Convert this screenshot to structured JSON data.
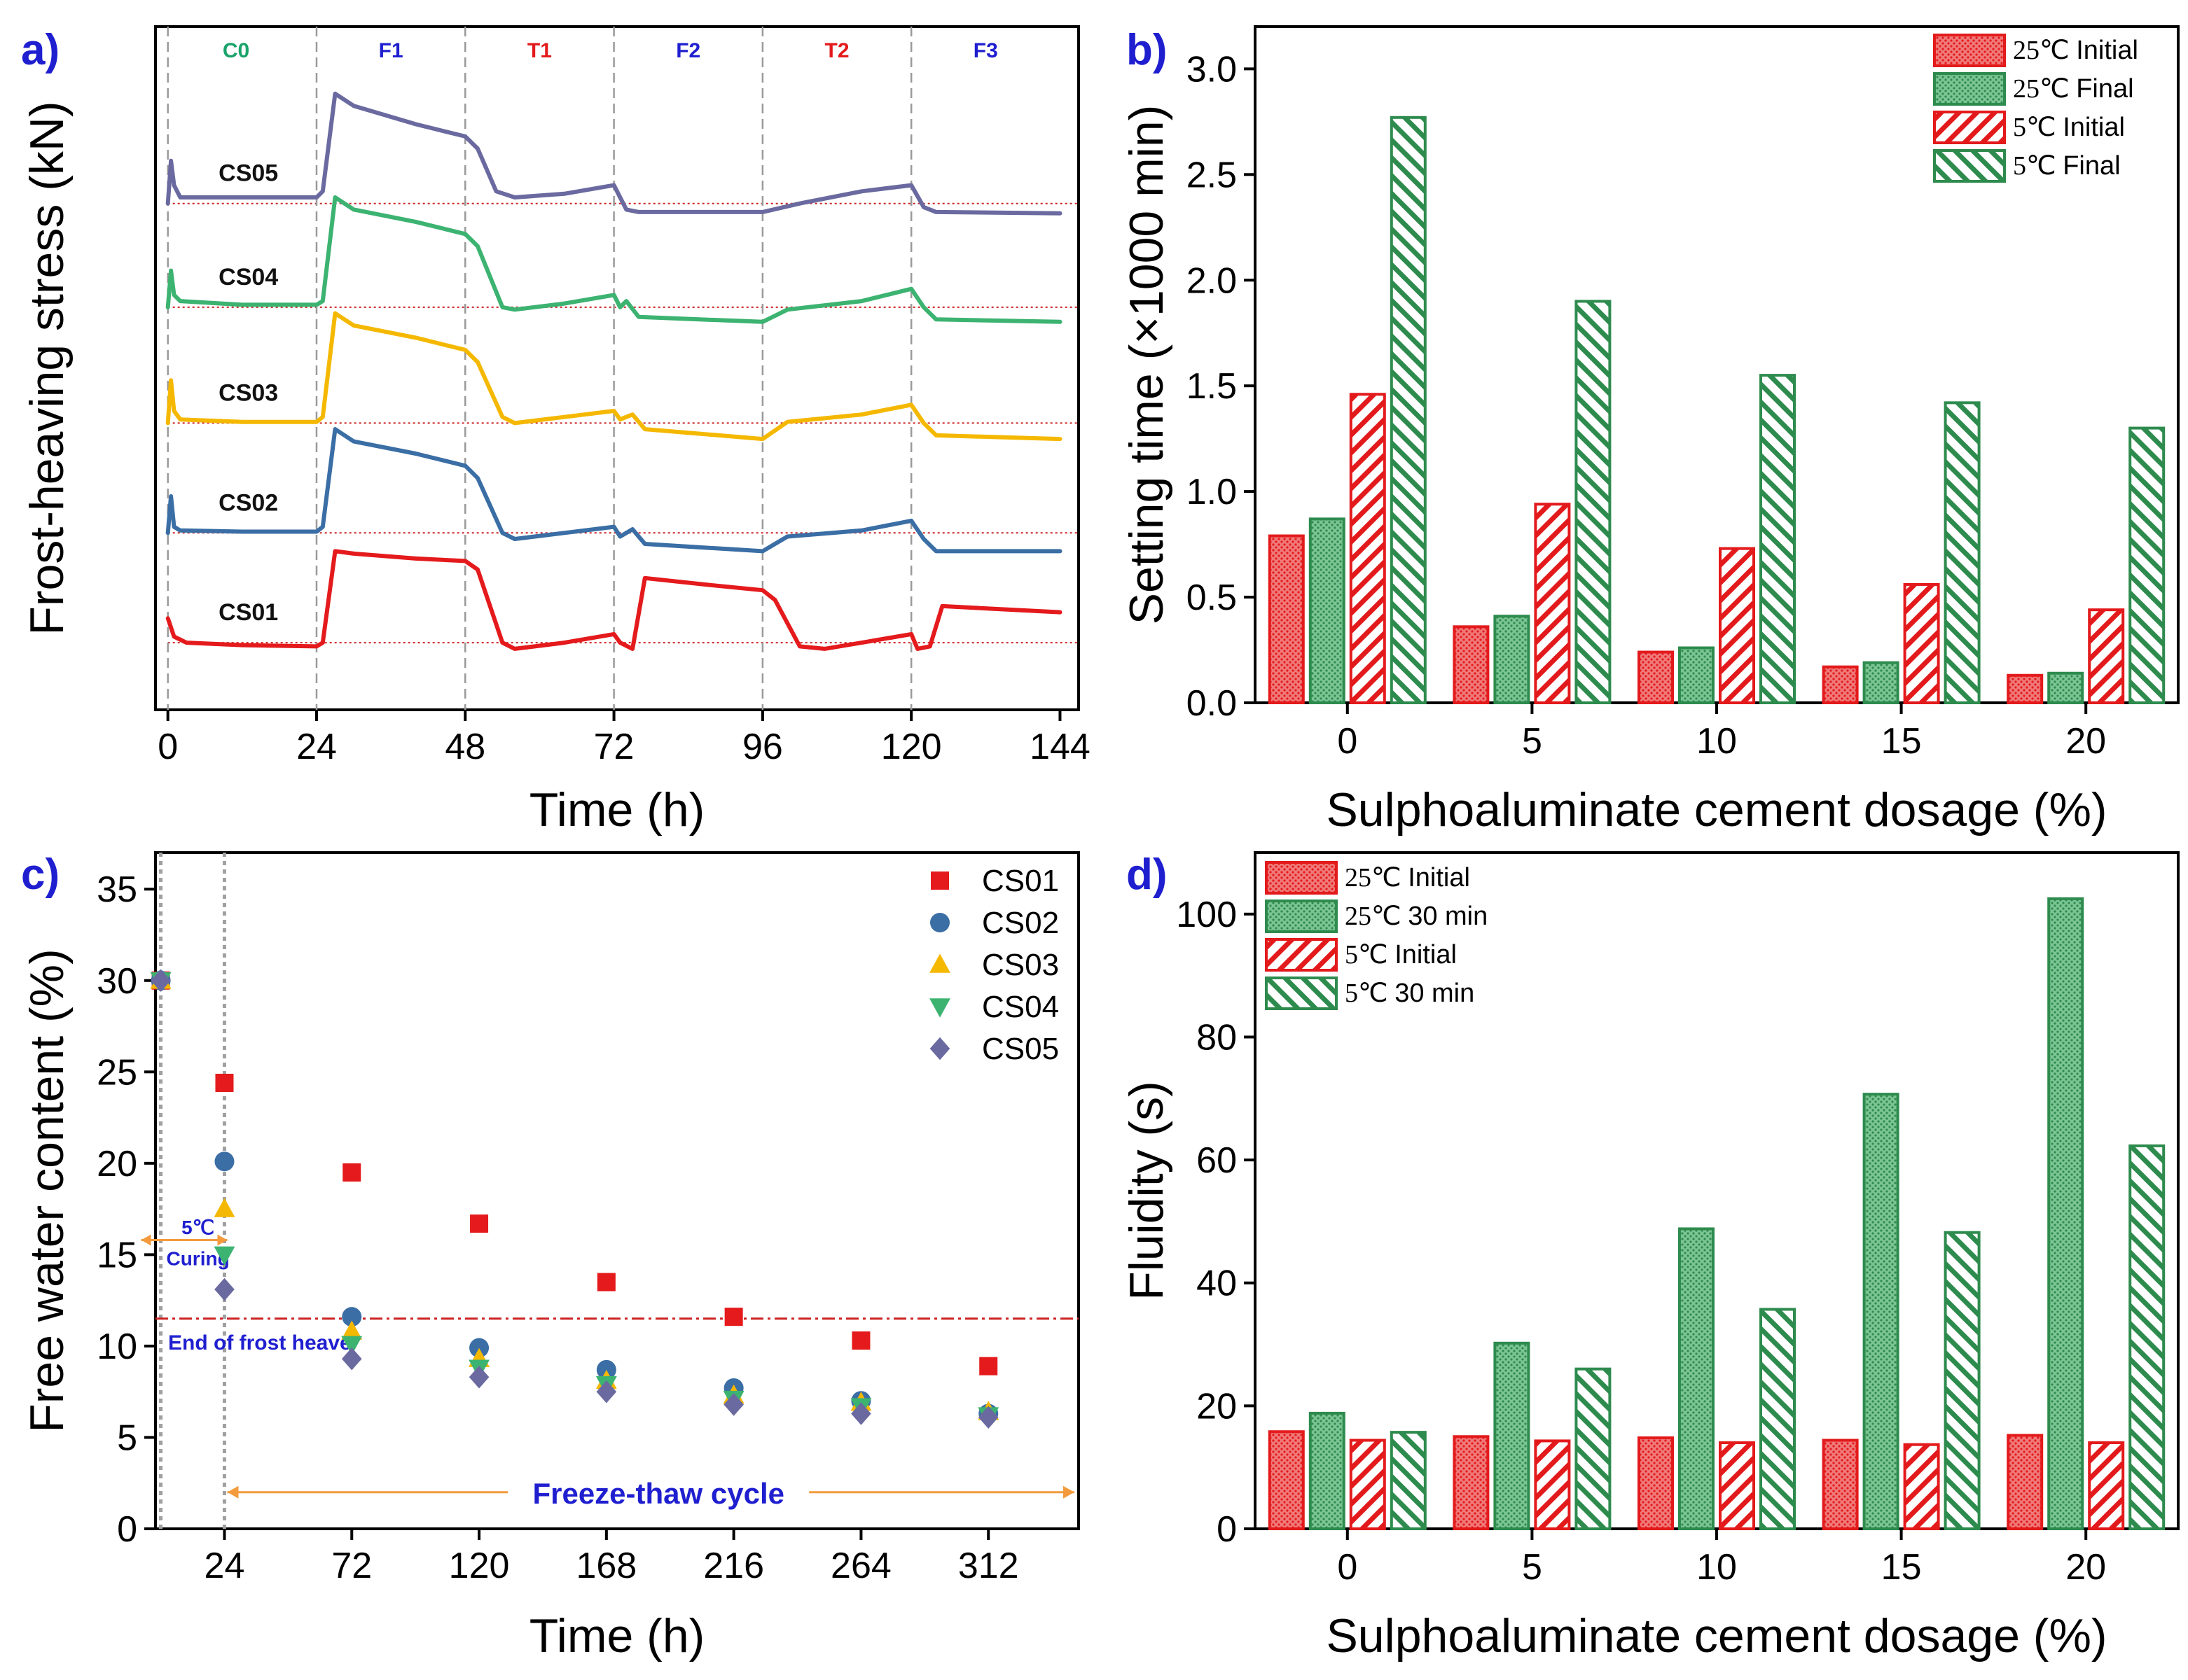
{
  "colors": {
    "red": "#e31a1c",
    "green": "#2e8b4e",
    "green_fill": "#4fae6e",
    "blue_label": "#1f1fd0",
    "c0_label": "#1aa36a",
    "panel_letter": "#1f1fd0",
    "cs01": "#e41a1c",
    "cs02": "#3a6ea5",
    "cs03": "#f5b800",
    "cs04": "#3cb371",
    "cs05": "#6a6aa0",
    "dashed_ref": "#cc2222",
    "orange": "#f39b3c"
  },
  "chart_data": [
    {
      "panel": "a)",
      "type": "line",
      "title": "",
      "xlabel": "Time (h)",
      "ylabel": "Frost-heaving stress (kN)",
      "xlim": [
        -2,
        147
      ],
      "xticks": [
        0,
        24,
        48,
        72,
        96,
        120,
        144
      ],
      "stage_boundaries": [
        0,
        24,
        48,
        72,
        96,
        120
      ],
      "stages": [
        {
          "label": "C0",
          "x": 11,
          "color": "#1aa36a"
        },
        {
          "label": "F1",
          "x": 36,
          "color": "#1f1fd0"
        },
        {
          "label": "T1",
          "x": 60,
          "color": "#e31a1c"
        },
        {
          "label": "F2",
          "x": 84,
          "color": "#1f1fd0"
        },
        {
          "label": "T2",
          "x": 108,
          "color": "#e31a1c"
        },
        {
          "label": "F3",
          "x": 132,
          "color": "#1f1fd0"
        }
      ],
      "legend_position": "none",
      "series": [
        {
          "name": "CS05",
          "color": "#6a6aa0",
          "baseline": 4.15,
          "label_x": 13,
          "points": [
            [
              0,
              4.15
            ],
            [
              0.5,
              4.5
            ],
            [
              1,
              4.3
            ],
            [
              2,
              4.2
            ],
            [
              12,
              4.2
            ],
            [
              24,
              4.2
            ],
            [
              25,
              4.25
            ],
            [
              27,
              5.05
            ],
            [
              30,
              4.95
            ],
            [
              40,
              4.8
            ],
            [
              48,
              4.7
            ],
            [
              50,
              4.6
            ],
            [
              53,
              4.25
            ],
            [
              56,
              4.2
            ],
            [
              64,
              4.23
            ],
            [
              72,
              4.3
            ],
            [
              74,
              4.1
            ],
            [
              76,
              4.08
            ],
            [
              96,
              4.08
            ],
            [
              102,
              4.15
            ],
            [
              112,
              4.25
            ],
            [
              120,
              4.3
            ],
            [
              122,
              4.12
            ],
            [
              124,
              4.08
            ],
            [
              144,
              4.07
            ]
          ]
        },
        {
          "name": "CS04",
          "color": "#3cb371",
          "baseline": 3.3,
          "label_x": 13,
          "points": [
            [
              0,
              3.3
            ],
            [
              0.5,
              3.6
            ],
            [
              1,
              3.4
            ],
            [
              2,
              3.35
            ],
            [
              12,
              3.32
            ],
            [
              24,
              3.32
            ],
            [
              25,
              3.35
            ],
            [
              27,
              4.2
            ],
            [
              30,
              4.1
            ],
            [
              40,
              4.0
            ],
            [
              48,
              3.9
            ],
            [
              50,
              3.8
            ],
            [
              54,
              3.3
            ],
            [
              56,
              3.28
            ],
            [
              64,
              3.33
            ],
            [
              72,
              3.4
            ],
            [
              73,
              3.3
            ],
            [
              74,
              3.35
            ],
            [
              76,
              3.22
            ],
            [
              96,
              3.18
            ],
            [
              100,
              3.28
            ],
            [
              112,
              3.35
            ],
            [
              120,
              3.45
            ],
            [
              122,
              3.3
            ],
            [
              124,
              3.2
            ],
            [
              144,
              3.18
            ]
          ]
        },
        {
          "name": "CS03",
          "color": "#f5b800",
          "baseline": 2.35,
          "label_x": 13,
          "points": [
            [
              0,
              2.35
            ],
            [
              0.5,
              2.7
            ],
            [
              1,
              2.45
            ],
            [
              2,
              2.38
            ],
            [
              12,
              2.36
            ],
            [
              24,
              2.36
            ],
            [
              25,
              2.4
            ],
            [
              27,
              3.25
            ],
            [
              30,
              3.15
            ],
            [
              40,
              3.05
            ],
            [
              48,
              2.95
            ],
            [
              50,
              2.85
            ],
            [
              54,
              2.4
            ],
            [
              56,
              2.35
            ],
            [
              64,
              2.4
            ],
            [
              72,
              2.45
            ],
            [
              73,
              2.38
            ],
            [
              75,
              2.42
            ],
            [
              77,
              2.3
            ],
            [
              96,
              2.22
            ],
            [
              100,
              2.36
            ],
            [
              112,
              2.42
            ],
            [
              120,
              2.5
            ],
            [
              122,
              2.35
            ],
            [
              124,
              2.25
            ],
            [
              144,
              2.22
            ]
          ]
        },
        {
          "name": "CS02",
          "color": "#3a6ea5",
          "baseline": 1.45,
          "label_x": 13,
          "points": [
            [
              0,
              1.45
            ],
            [
              0.5,
              1.75
            ],
            [
              1,
              1.5
            ],
            [
              2,
              1.47
            ],
            [
              12,
              1.46
            ],
            [
              24,
              1.46
            ],
            [
              25,
              1.5
            ],
            [
              27,
              2.3
            ],
            [
              30,
              2.2
            ],
            [
              40,
              2.1
            ],
            [
              48,
              2.0
            ],
            [
              50,
              1.9
            ],
            [
              54,
              1.45
            ],
            [
              56,
              1.4
            ],
            [
              64,
              1.45
            ],
            [
              72,
              1.5
            ],
            [
              73,
              1.42
            ],
            [
              75,
              1.48
            ],
            [
              77,
              1.36
            ],
            [
              96,
              1.3
            ],
            [
              100,
              1.42
            ],
            [
              112,
              1.47
            ],
            [
              120,
              1.55
            ],
            [
              122,
              1.4
            ],
            [
              124,
              1.3
            ],
            [
              144,
              1.3
            ]
          ]
        },
        {
          "name": "CS01",
          "color": "#e41a1c",
          "baseline": 0.55,
          "label_x": 13,
          "points": [
            [
              0,
              0.75
            ],
            [
              1,
              0.6
            ],
            [
              3,
              0.55
            ],
            [
              12,
              0.53
            ],
            [
              24,
              0.52
            ],
            [
              25,
              0.55
            ],
            [
              27,
              1.3
            ],
            [
              30,
              1.28
            ],
            [
              40,
              1.24
            ],
            [
              48,
              1.22
            ],
            [
              50,
              1.15
            ],
            [
              54,
              0.55
            ],
            [
              56,
              0.5
            ],
            [
              64,
              0.55
            ],
            [
              72,
              0.62
            ],
            [
              73,
              0.55
            ],
            [
              75,
              0.5
            ],
            [
              77,
              1.08
            ],
            [
              88,
              1.02
            ],
            [
              96,
              0.98
            ],
            [
              98,
              0.9
            ],
            [
              102,
              0.52
            ],
            [
              106,
              0.5
            ],
            [
              112,
              0.55
            ],
            [
              120,
              0.62
            ],
            [
              121,
              0.5
            ],
            [
              123,
              0.52
            ],
            [
              125,
              0.85
            ],
            [
              144,
              0.8
            ]
          ]
        }
      ]
    },
    {
      "panel": "b)",
      "type": "bar",
      "xlabel": "Sulphoaluminate cement dosage (%)",
      "ylabel": "Setting time (×1000 min)",
      "ylim": [
        0,
        3.2
      ],
      "yticks": [
        0.0,
        0.5,
        1.0,
        1.5,
        2.0,
        2.5,
        3.0
      ],
      "ytick_labels": [
        "0.0",
        "0.5",
        "1.0",
        "1.5",
        "2.0",
        "2.5",
        "3.0"
      ],
      "categories": [
        "0",
        "5",
        "10",
        "15",
        "20"
      ],
      "legend_position": "top-right",
      "series": [
        {
          "name": "25℃ Initial",
          "color": "#e31a1c",
          "pattern": "dots",
          "values": [
            0.79,
            0.36,
            0.24,
            0.17,
            0.13
          ]
        },
        {
          "name": "25℃ Final",
          "color": "#2e8b4e",
          "pattern": "dots",
          "values": [
            0.87,
            0.41,
            0.26,
            0.19,
            0.14
          ]
        },
        {
          "name": "5℃ Initial",
          "color": "#e31a1c",
          "pattern": "hatch",
          "values": [
            1.46,
            0.94,
            0.73,
            0.56,
            0.44
          ]
        },
        {
          "name": "5℃ Final",
          "color": "#2e8b4e",
          "pattern": "hatch",
          "values": [
            2.77,
            1.9,
            1.55,
            1.42,
            1.3
          ]
        }
      ]
    },
    {
      "panel": "c)",
      "type": "scatter",
      "xlabel": "Time (h)",
      "ylabel": "Free water content (%)",
      "xlim": [
        -2,
        346
      ],
      "ylim": [
        0,
        37
      ],
      "xticks": [
        24,
        72,
        120,
        168,
        216,
        264,
        312
      ],
      "yticks": [
        0,
        5,
        10,
        15,
        20,
        25,
        30,
        35
      ],
      "legend_position": "top-right",
      "reference_line": {
        "y": 11.5,
        "label": "End of frost heave"
      },
      "annotations": [
        {
          "text": "5℃",
          "x": 14,
          "y": 16.5
        },
        {
          "text": "Curing",
          "x": 14,
          "y": 14.8
        },
        {
          "text": "Freeze-thaw cycle",
          "x": 165,
          "y": 2
        }
      ],
      "vertical_dotted_x": [
        0,
        24
      ],
      "series": [
        {
          "name": "CS01",
          "color": "#e41a1c",
          "marker": "square",
          "x": [
            0,
            24,
            72,
            120,
            168,
            216,
            264,
            312
          ],
          "y": [
            30,
            24.4,
            19.5,
            16.7,
            13.5,
            11.6,
            10.3,
            8.9
          ]
        },
        {
          "name": "CS02",
          "color": "#3a6ea5",
          "marker": "circle",
          "x": [
            0,
            24,
            72,
            120,
            168,
            216,
            264,
            312
          ],
          "y": [
            30,
            20.1,
            11.6,
            9.9,
            8.7,
            7.7,
            7.0,
            6.3
          ]
        },
        {
          "name": "CS03",
          "color": "#f5b800",
          "marker": "triangle-up",
          "x": [
            0,
            24,
            72,
            120,
            168,
            216,
            264,
            312
          ],
          "y": [
            30,
            17.5,
            10.8,
            9.3,
            8.1,
            7.3,
            6.9,
            6.4
          ]
        },
        {
          "name": "CS04",
          "color": "#3cb371",
          "marker": "triangle-down",
          "x": [
            0,
            24,
            72,
            120,
            168,
            216,
            264,
            312
          ],
          "y": [
            30,
            15.0,
            10.1,
            8.8,
            7.9,
            7.1,
            6.7,
            6.2
          ]
        },
        {
          "name": "CS05",
          "color": "#6a6aa0",
          "marker": "diamond",
          "x": [
            0,
            24,
            72,
            120,
            168,
            216,
            264,
            312
          ],
          "y": [
            30,
            13.1,
            9.3,
            8.3,
            7.5,
            6.8,
            6.3,
            6.1
          ]
        }
      ]
    },
    {
      "panel": "d)",
      "type": "bar",
      "xlabel": "Sulphoaluminate cement dosage (%)",
      "ylabel": "Fluidity (s)",
      "ylim": [
        0,
        110
      ],
      "yticks": [
        0,
        20,
        40,
        60,
        80,
        100
      ],
      "ytick_labels": [
        "0",
        "20",
        "40",
        "60",
        "80",
        "100"
      ],
      "categories": [
        "0",
        "5",
        "10",
        "15",
        "20"
      ],
      "legend_position": "top-left",
      "series": [
        {
          "name": "25℃ Initial",
          "color": "#e31a1c",
          "pattern": "dots",
          "values": [
            15.8,
            15.0,
            14.8,
            14.4,
            15.2
          ]
        },
        {
          "name": "25℃ 30 min",
          "color": "#2e8b4e",
          "pattern": "dots",
          "values": [
            18.8,
            30.2,
            48.8,
            70.7,
            102.5
          ]
        },
        {
          "name": "5℃ Initial",
          "color": "#e31a1c",
          "pattern": "hatch",
          "values": [
            14.4,
            14.3,
            14.0,
            13.7,
            14.0
          ]
        },
        {
          "name": "5℃ 30 min",
          "color": "#2e8b4e",
          "pattern": "hatch",
          "values": [
            15.7,
            26.0,
            35.7,
            48.2,
            62.3
          ]
        }
      ]
    }
  ]
}
